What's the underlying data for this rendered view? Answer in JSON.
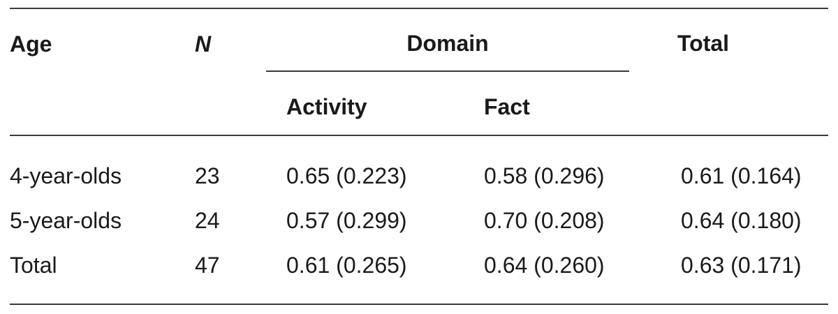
{
  "table": {
    "headers": {
      "age": "Age",
      "n": "N",
      "domain": "Domain",
      "total": "Total",
      "activity": "Activity",
      "fact": "Fact"
    },
    "rows": [
      {
        "age": "4-year-olds",
        "n": "23",
        "activity": "0.65 (0.223)",
        "fact": "0.58 (0.296)",
        "total": "0.61 (0.164)"
      },
      {
        "age": "5-year-olds",
        "n": "24",
        "activity": "0.57 (0.299)",
        "fact": "0.70 (0.208)",
        "total": "0.64 (0.180)"
      },
      {
        "age": "Total",
        "n": "47",
        "activity": "0.61 (0.265)",
        "fact": "0.64 (0.260)",
        "total": "0.63 (0.171)"
      }
    ]
  }
}
